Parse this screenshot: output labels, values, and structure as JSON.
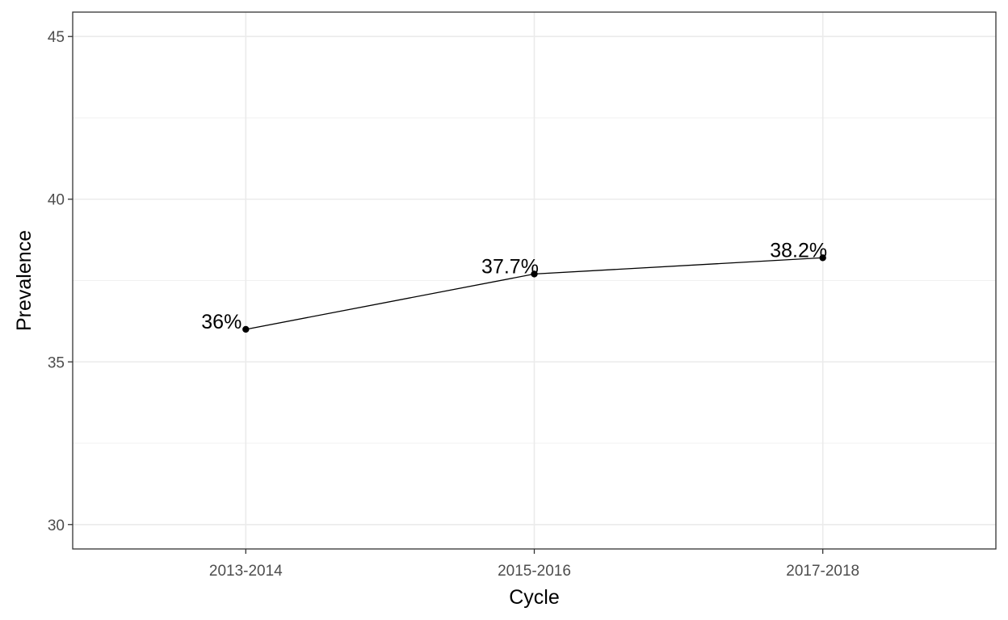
{
  "chart_data": {
    "type": "line",
    "title": "",
    "xlabel": "Cycle",
    "ylabel": "Prevalence",
    "categories": [
      "2013-2014",
      "2015-2016",
      "2017-2018"
    ],
    "series": [
      {
        "values": [
          36.0,
          37.7,
          38.2
        ],
        "labels": [
          "36%",
          "37.7%",
          "38.2%"
        ]
      }
    ],
    "ylim": [
      29.25,
      45.75
    ],
    "yticks": [
      30,
      35,
      40,
      45
    ],
    "yticks_labels": [
      "30",
      "35",
      "40",
      "45"
    ],
    "grid": true,
    "legend": "none",
    "colors": {
      "line": "#000000",
      "grid": "#ebebeb",
      "panel_border": "#333333",
      "tick_text": "#4d4d4d"
    }
  }
}
